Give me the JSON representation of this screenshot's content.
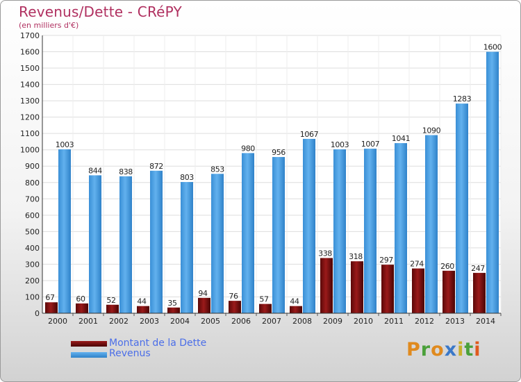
{
  "header": {
    "title": "Revenus/Dette - CRéPY",
    "subtitle": "(en milliers d'€)"
  },
  "colors": {
    "debt": "#7a0f0f",
    "revenue": "#4a9fe3",
    "title": "#b03060"
  },
  "legend": {
    "debt_label": "Montant de la Dette",
    "revenue_label": "Revenus"
  },
  "logo": {
    "letters": [
      "P",
      "r",
      "o",
      "x",
      "i",
      "t",
      "i"
    ],
    "colors": [
      "#e08a1e",
      "#4aa03a",
      "#e08a1e",
      "#3a78c8",
      "#c8b02a",
      "#4aa03a",
      "#e05a1e"
    ]
  },
  "chart_data": {
    "type": "bar",
    "title": "Revenus/Dette - CRéPY",
    "ylabel": "(en milliers d'€)",
    "xlabel": "",
    "ylim": [
      0,
      1700
    ],
    "yticks": [
      0,
      100,
      200,
      300,
      400,
      500,
      600,
      700,
      800,
      900,
      1000,
      1100,
      1200,
      1300,
      1400,
      1500,
      1600,
      1700
    ],
    "grid": true,
    "legend_position": "bottom-left",
    "categories": [
      "2000",
      "2001",
      "2002",
      "2003",
      "2004",
      "2005",
      "2006",
      "2007",
      "2008",
      "2009",
      "2010",
      "2011",
      "2012",
      "2013",
      "2014"
    ],
    "series": [
      {
        "name": "Montant de la Dette",
        "values": [
          67,
          60,
          52,
          44,
          35,
          94,
          76,
          57,
          44,
          338,
          318,
          297,
          274,
          260,
          247
        ]
      },
      {
        "name": "Revenus",
        "values": [
          1003,
          844,
          838,
          872,
          803,
          853,
          980,
          956,
          1067,
          1003,
          1007,
          1041,
          1090,
          1283,
          1600
        ]
      }
    ]
  }
}
